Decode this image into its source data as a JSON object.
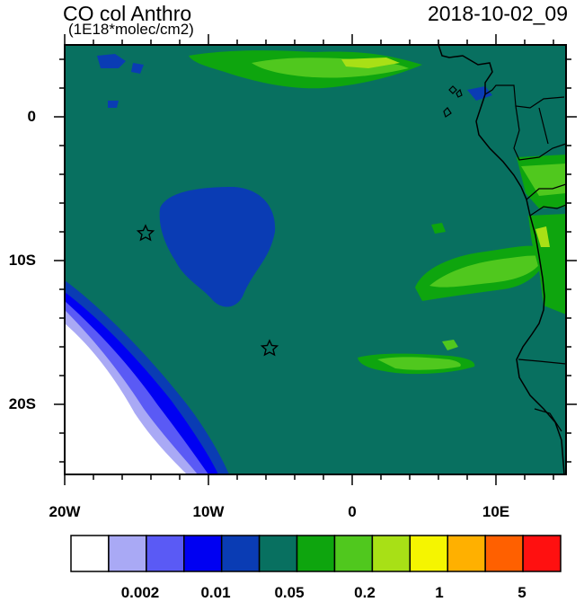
{
  "header": {
    "title": "CO col Anthro",
    "units": "(1E18*molec/cm2)",
    "timestamp": "2018-10-02_09"
  },
  "axes": {
    "y_ticks": [
      "0",
      "10S",
      "20S"
    ],
    "x_ticks": [
      "20W",
      "10W",
      "0",
      "10E"
    ]
  },
  "colorbar": {
    "colors": [
      "#ffffff",
      "#a9a9f5",
      "#5a5af5",
      "#0000f2",
      "#0a3cb4",
      "#087060",
      "#0ea50e",
      "#50c81e",
      "#a8e016",
      "#f5f500",
      "#ffb000",
      "#ff6000",
      "#ff1010"
    ],
    "labels": [
      "0.002",
      "0.01",
      "0.05",
      "0.2",
      "1",
      "5"
    ]
  },
  "map": {
    "ocean_color": "#087060",
    "markers": [
      "star",
      "star"
    ]
  }
}
